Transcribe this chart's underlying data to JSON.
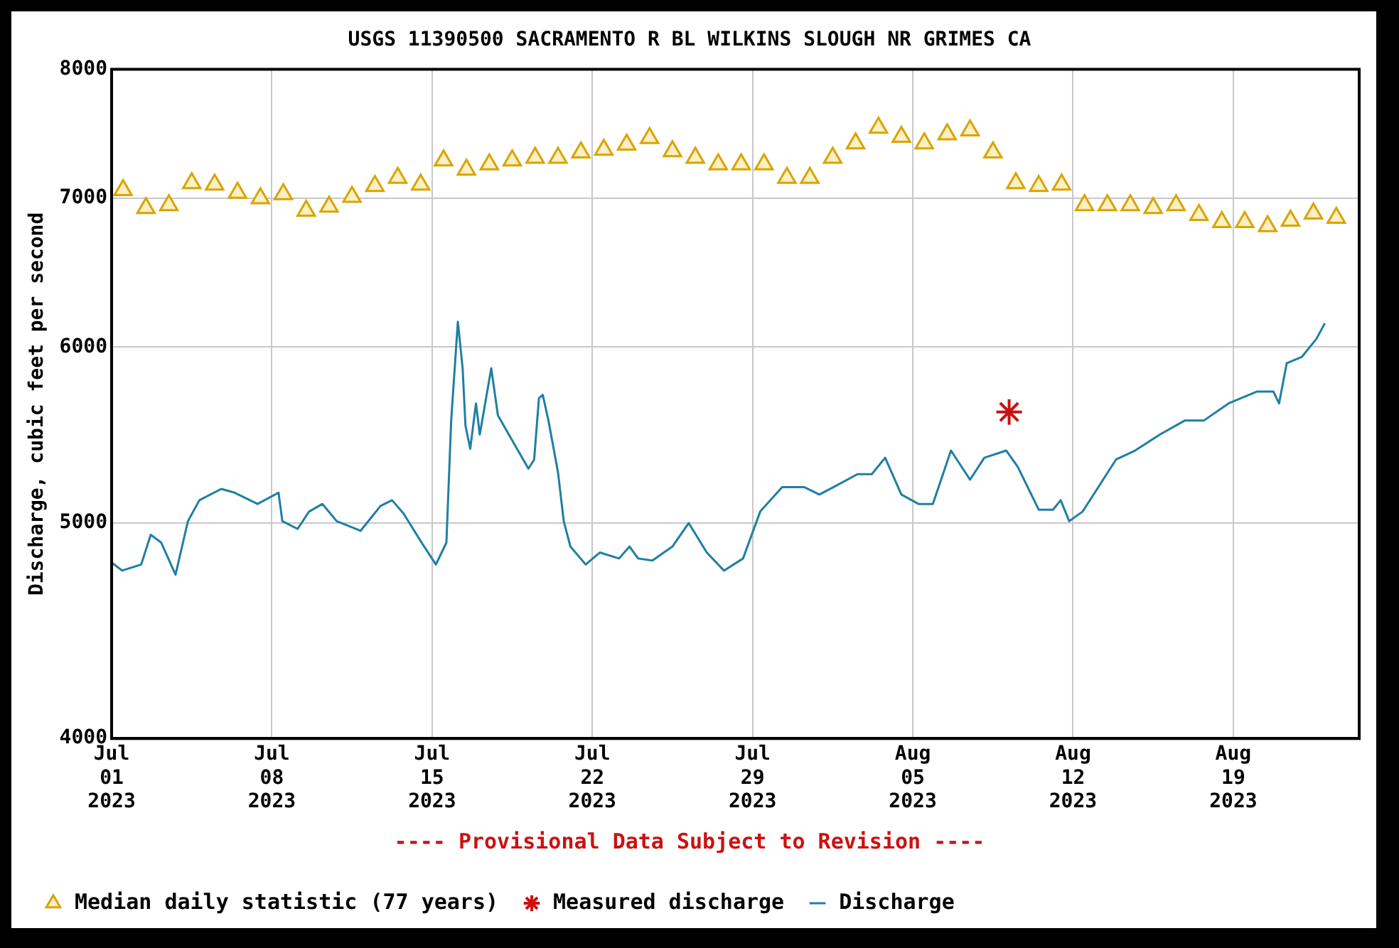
{
  "chart_data": {
    "type": "line",
    "title": "USGS 11390500 SACRAMENTO R BL WILKINS SLOUGH NR GRIMES CA",
    "ylabel": "Discharge, cubic feet per second",
    "xlim": [
      "2023-07-01",
      "2023-08-24T12:00"
    ],
    "xticks": [
      {
        "value": "2023-07-01",
        "label": "Jul\n01\n2023"
      },
      {
        "value": "2023-07-08",
        "label": "Jul\n08\n2023"
      },
      {
        "value": "2023-07-15",
        "label": "Jul\n15\n2023"
      },
      {
        "value": "2023-07-22",
        "label": "Jul\n22\n2023"
      },
      {
        "value": "2023-07-29",
        "label": "Jul\n29\n2023"
      },
      {
        "value": "2023-08-05",
        "label": "Aug\n05\n2023"
      },
      {
        "value": "2023-08-12",
        "label": "Aug\n12\n2023"
      },
      {
        "value": "2023-08-19",
        "label": "Aug\n19\n2023"
      }
    ],
    "ylim": [
      4000,
      8000
    ],
    "yticks": [
      4000,
      5000,
      6000,
      7000,
      8000
    ],
    "log": "y",
    "grid": true,
    "legend": "bottom",
    "annotations": [
      "---- Provisional Data Subject to Revision ----"
    ],
    "series": [
      {
        "name": "Median daily statistic (77 years)",
        "type": "scatter",
        "marker": "triangle",
        "color": "#d9a400",
        "x": [
          "2023-07-01T12:00",
          "2023-07-02T12:00",
          "2023-07-03T12:00",
          "2023-07-04T12:00",
          "2023-07-05T12:00",
          "2023-07-06T12:00",
          "2023-07-07T12:00",
          "2023-07-08T12:00",
          "2023-07-09T12:00",
          "2023-07-10T12:00",
          "2023-07-11T12:00",
          "2023-07-12T12:00",
          "2023-07-13T12:00",
          "2023-07-14T12:00",
          "2023-07-15T12:00",
          "2023-07-16T12:00",
          "2023-07-17T12:00",
          "2023-07-18T12:00",
          "2023-07-19T12:00",
          "2023-07-20T12:00",
          "2023-07-21T12:00",
          "2023-07-22T12:00",
          "2023-07-23T12:00",
          "2023-07-24T12:00",
          "2023-07-25T12:00",
          "2023-07-26T12:00",
          "2023-07-27T12:00",
          "2023-07-28T12:00",
          "2023-07-29T12:00",
          "2023-07-30T12:00",
          "2023-07-31T12:00",
          "2023-08-01T12:00",
          "2023-08-02T12:00",
          "2023-08-03T12:00",
          "2023-08-04T12:00",
          "2023-08-05T12:00",
          "2023-08-06T12:00",
          "2023-08-07T12:00",
          "2023-08-08T12:00",
          "2023-08-09T12:00",
          "2023-08-10T12:00",
          "2023-08-11T12:00",
          "2023-08-12T12:00",
          "2023-08-13T12:00",
          "2023-08-14T12:00",
          "2023-08-15T12:00",
          "2023-08-16T12:00",
          "2023-08-17T12:00",
          "2023-08-18T12:00",
          "2023-08-19T12:00",
          "2023-08-20T12:00",
          "2023-08-21T12:00",
          "2023-08-22T12:00",
          "2023-08-23T12:00"
        ],
        "values": [
          7060,
          6930,
          6950,
          7110,
          7100,
          7040,
          7000,
          7030,
          6910,
          6940,
          7010,
          7090,
          7150,
          7100,
          7280,
          7210,
          7250,
          7280,
          7300,
          7300,
          7340,
          7360,
          7400,
          7450,
          7350,
          7300,
          7250,
          7250,
          7250,
          7150,
          7150,
          7300,
          7410,
          7530,
          7460,
          7410,
          7480,
          7510,
          7340,
          7110,
          7090,
          7100,
          6950,
          6950,
          6950,
          6930,
          6950,
          6880,
          6830,
          6830,
          6800,
          6840,
          6890,
          6860
        ]
      },
      {
        "name": "Measured discharge",
        "type": "scatter",
        "marker": "cross",
        "color": "#cc1111",
        "x": [
          "2023-08-09T05:00"
        ],
        "values": [
          5610
        ]
      },
      {
        "name": "Discharge",
        "type": "line",
        "marker": "none",
        "color": "#1f7fa3",
        "x": [
          "2023-07-01T00:00",
          "2023-07-01T11:00",
          "2023-07-02T07:00",
          "2023-07-02T17:00",
          "2023-07-03T04:00",
          "2023-07-03T19:00",
          "2023-07-04T08:00",
          "2023-07-04T20:00",
          "2023-07-05T19:00",
          "2023-07-06T09:00",
          "2023-07-07T09:00",
          "2023-07-08T07:00",
          "2023-07-08T11:00",
          "2023-07-09T03:00",
          "2023-07-09T15:00",
          "2023-07-10T05:00",
          "2023-07-10T20:00",
          "2023-07-11T21:00",
          "2023-07-12T18:00",
          "2023-07-13T06:00",
          "2023-07-13T18:00",
          "2023-07-14T13:00",
          "2023-07-15T04:00",
          "2023-07-15T15:00",
          "2023-07-15T20:00",
          "2023-07-16T03:00",
          "2023-07-16T08:00",
          "2023-07-16T11:00",
          "2023-07-16T16:00",
          "2023-07-16T22:00",
          "2023-07-17T02:00",
          "2023-07-17T14:00",
          "2023-07-17T21:00",
          "2023-07-18T17:00",
          "2023-07-19T05:00",
          "2023-07-19T11:00",
          "2023-07-19T16:00",
          "2023-07-19T20:00",
          "2023-07-20T02:00",
          "2023-07-20T12:00",
          "2023-07-20T18:00",
          "2023-07-21T01:00",
          "2023-07-21T17:00",
          "2023-07-22T08:00",
          "2023-07-23T04:00",
          "2023-07-23T15:00",
          "2023-07-24T00:00",
          "2023-07-24T15:00",
          "2023-07-25T12:00",
          "2023-07-26T05:00",
          "2023-07-27T00:00",
          "2023-07-27T18:00",
          "2023-07-28T14:00",
          "2023-07-29T08:00",
          "2023-07-30T07:00",
          "2023-07-31T06:00",
          "2023-07-31T22:00",
          "2023-08-01T13:00",
          "2023-08-02T14:00",
          "2023-08-03T05:00",
          "2023-08-03T19:00",
          "2023-08-04T12:00",
          "2023-08-05T06:00",
          "2023-08-05T21:00",
          "2023-08-06T16:00",
          "2023-08-07T12:00",
          "2023-08-08T03:00",
          "2023-08-09T02:00",
          "2023-08-09T14:00",
          "2023-08-10T12:00",
          "2023-08-11T03:00",
          "2023-08-11T11:00",
          "2023-08-11T20:00",
          "2023-08-12T10:00",
          "2023-08-13T21:00",
          "2023-08-14T17:00",
          "2023-08-15T19:00",
          "2023-08-16T21:00",
          "2023-08-17T17:00",
          "2023-08-18T19:00",
          "2023-08-20T01:00",
          "2023-08-20T18:00",
          "2023-08-21T00:00",
          "2023-08-21T08:00",
          "2023-08-22T00:00",
          "2023-08-22T15:00",
          "2023-08-23T00:00"
        ],
        "values": [
          4800,
          4760,
          4790,
          4940,
          4900,
          4740,
          5010,
          5120,
          5180,
          5160,
          5100,
          5160,
          5010,
          4970,
          5060,
          5100,
          5010,
          4960,
          5090,
          5120,
          5050,
          4900,
          4790,
          4900,
          5560,
          6160,
          5870,
          5530,
          5400,
          5660,
          5480,
          5870,
          5590,
          5400,
          5290,
          5340,
          5690,
          5710,
          5560,
          5270,
          5010,
          4880,
          4790,
          4850,
          4820,
          4880,
          4820,
          4810,
          4880,
          5000,
          4850,
          4760,
          4820,
          5060,
          5190,
          5190,
          5150,
          5190,
          5260,
          5260,
          5350,
          5150,
          5100,
          5100,
          5390,
          5230,
          5350,
          5390,
          5300,
          5070,
          5070,
          5120,
          5010,
          5060,
          5340,
          5390,
          5480,
          5560,
          5560,
          5660,
          5730,
          5730,
          5660,
          5900,
          5940,
          6050,
          6150
        ]
      }
    ]
  }
}
